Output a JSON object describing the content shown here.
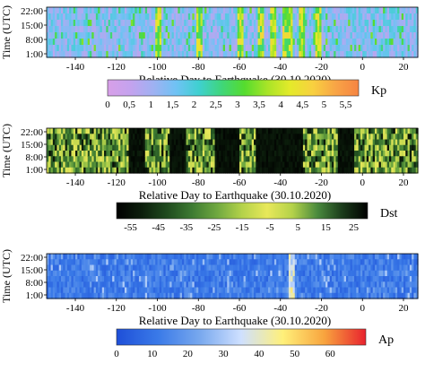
{
  "figure_caption": "",
  "chart_data": [
    {
      "type": "heatmap",
      "index": "Kp",
      "xlabel": "Relative Day to Earthquake (30.10.2020)",
      "ylabel": "Time (UTC)",
      "x_ticks": [
        -140,
        -120,
        -100,
        -80,
        -60,
        -40,
        -20,
        0,
        20
      ],
      "x_range": [
        -154,
        27
      ],
      "y_ticks": [
        "1:00",
        "8:00",
        "15:00",
        "22:00"
      ],
      "colorbar": {
        "label": "Kp",
        "ticks": [
          "0",
          "0,5",
          "1",
          "1,5",
          "2",
          "2,5",
          "3",
          "3,5",
          "4",
          "4,5",
          "5",
          "5,5"
        ],
        "range": [
          0,
          5.8
        ],
        "colors": [
          "#d8a0e8",
          "#c4a2ee",
          "#9fb1f2",
          "#6fc2f4",
          "#3fd0d0",
          "#3fd67a",
          "#55dc2e",
          "#a8e428",
          "#e4ea2a",
          "#f8d040",
          "#f8a446",
          "#f68442"
        ]
      },
      "notable_days": [
        -100,
        -80,
        -60,
        -50,
        -44,
        -38,
        -36,
        -30,
        -22
      ]
    },
    {
      "type": "heatmap",
      "index": "Dst",
      "xlabel": "Relative Day to Earthquake (30.10.2020)",
      "ylabel": "Time (UTC)",
      "x_ticks": [
        -140,
        -120,
        -100,
        -80,
        -60,
        -40,
        -20,
        0,
        20
      ],
      "x_range": [
        -154,
        27
      ],
      "y_ticks": [
        "1:00",
        "8:00",
        "15:00",
        "22:00"
      ],
      "colorbar": {
        "label": "Dst",
        "ticks": [
          "-55",
          "-45",
          "-35",
          "-25",
          "-15",
          "-5",
          "5",
          "15",
          "25"
        ],
        "range": [
          -60,
          30
        ],
        "colors": [
          "#000000",
          "#0c1e0c",
          "#1f4a1e",
          "#3d7a32",
          "#6fa840",
          "#b4d24a",
          "#e8e85a",
          "#b4d24a",
          "#4a8a3e",
          "#1a3a1a",
          "#000000"
        ]
      },
      "dark_days": [
        [
          -114,
          -107
        ],
        [
          -94,
          -87
        ],
        [
          -72,
          -61
        ],
        [
          -52,
          -30
        ],
        [
          -12,
          -5
        ]
      ]
    },
    {
      "type": "heatmap",
      "index": "Ap",
      "xlabel": "Relative Day to Earthquake (30.10.2020)",
      "ylabel": "Time (UTC)",
      "x_ticks": [
        -140,
        -120,
        -100,
        -80,
        -60,
        -40,
        -20,
        0,
        20
      ],
      "x_range": [
        -154,
        27
      ],
      "y_ticks": [
        "1:00",
        "8:00",
        "15:00",
        "22:00"
      ],
      "colorbar": {
        "label": "Ap",
        "ticks": [
          "0",
          "10",
          "20",
          "30",
          "40",
          "50",
          "60"
        ],
        "range": [
          0,
          70
        ],
        "colors": [
          "#1e4fd8",
          "#3a7ae8",
          "#78a8ee",
          "#cfe0ff",
          "#fff07a",
          "#f8a43e",
          "#e8222e"
        ]
      },
      "peak_day": -35
    }
  ]
}
